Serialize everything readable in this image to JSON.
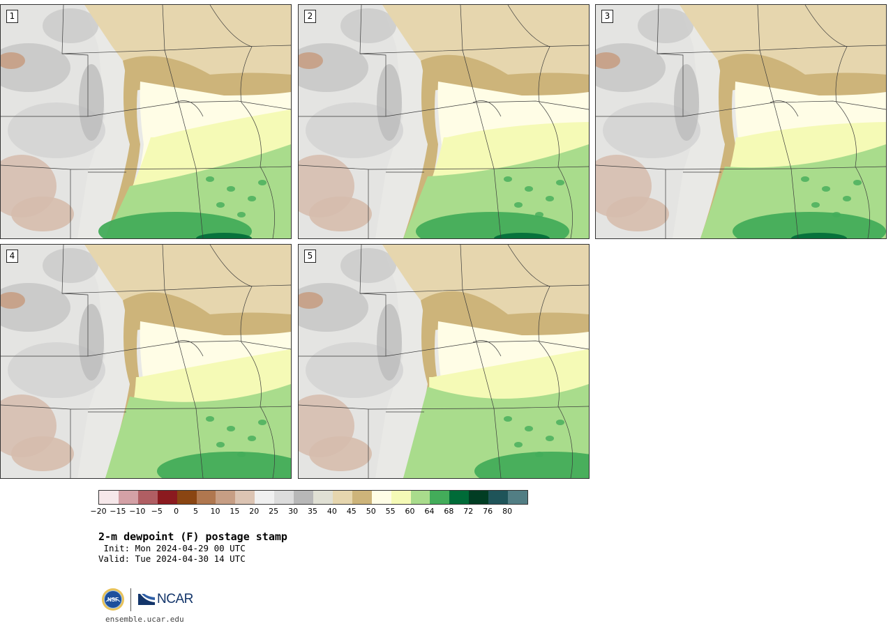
{
  "panels": [
    {
      "label": "1"
    },
    {
      "label": "2"
    },
    {
      "label": "3"
    },
    {
      "label": "4"
    },
    {
      "label": "5"
    }
  ],
  "colorbar": {
    "colors": [
      "#f6e8ea",
      "#d4a1a6",
      "#b05e63",
      "#8b1a1f",
      "#8a4512",
      "#b0774f",
      "#c79e84",
      "#dcc4b3",
      "#f0f0f0",
      "#dcdcdc",
      "#b8b8b8",
      "#e0e0d4",
      "#e6d6ae",
      "#cdb47a",
      "#fffde6",
      "#f5fab6",
      "#a9dc8c",
      "#43ac5a",
      "#006b38",
      "#013d23",
      "#1f5459",
      "#527e84"
    ],
    "tick_labels": [
      "−20",
      "−15",
      "−10",
      "−5",
      "0",
      "5",
      "10",
      "15",
      "20",
      "25",
      "30",
      "35",
      "40",
      "45",
      "50",
      "55",
      "60",
      "64",
      "68",
      "72",
      "76",
      "80"
    ]
  },
  "title": "2-m dewpoint (F) postage stamp",
  "init_text": " Init: Mon 2024-04-29 00 UTC",
  "valid_text": "Valid: Tue 2024-04-30 14 UTC",
  "logo": {
    "org": "NCAR",
    "seal": "NSF",
    "url": "ensemble.ucar.edu"
  }
}
